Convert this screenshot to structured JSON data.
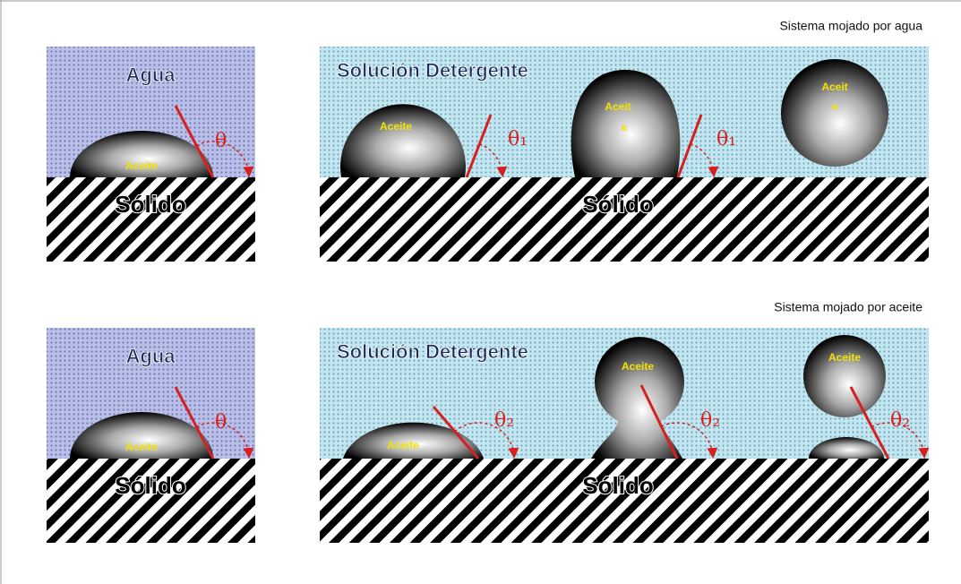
{
  "rows": [
    {
      "caption": "Sistema mojado por agua",
      "left_panel": {
        "liquid": "Agua",
        "solid": "Sólido",
        "drop": "Aceite",
        "angle": "θ"
      },
      "right_panel": {
        "liquid": "Solución Detergente",
        "solid": "Sólido",
        "drops": [
          {
            "label": [
              "Aceite"
            ],
            "angle": "θ₁"
          },
          {
            "label": [
              "Aceit",
              "e"
            ],
            "angle": "θ₁"
          },
          {
            "label": [
              "Aceit",
              "e"
            ]
          }
        ]
      }
    },
    {
      "caption": "Sistema mojado por aceite",
      "left_panel": {
        "liquid": "Agua",
        "solid": "Sólido",
        "drop": "Aceite",
        "angle": "θ"
      },
      "right_panel": {
        "liquid": "Solución Detergente",
        "solid": "Sólido",
        "drops": [
          {
            "label": [
              "Aceite"
            ],
            "angle": "θ₂"
          },
          {
            "label": [
              "Aceite"
            ],
            "angle": "θ₂"
          },
          {
            "label": [
              "Aceite"
            ],
            "angle": "θ₂"
          }
        ]
      }
    }
  ]
}
